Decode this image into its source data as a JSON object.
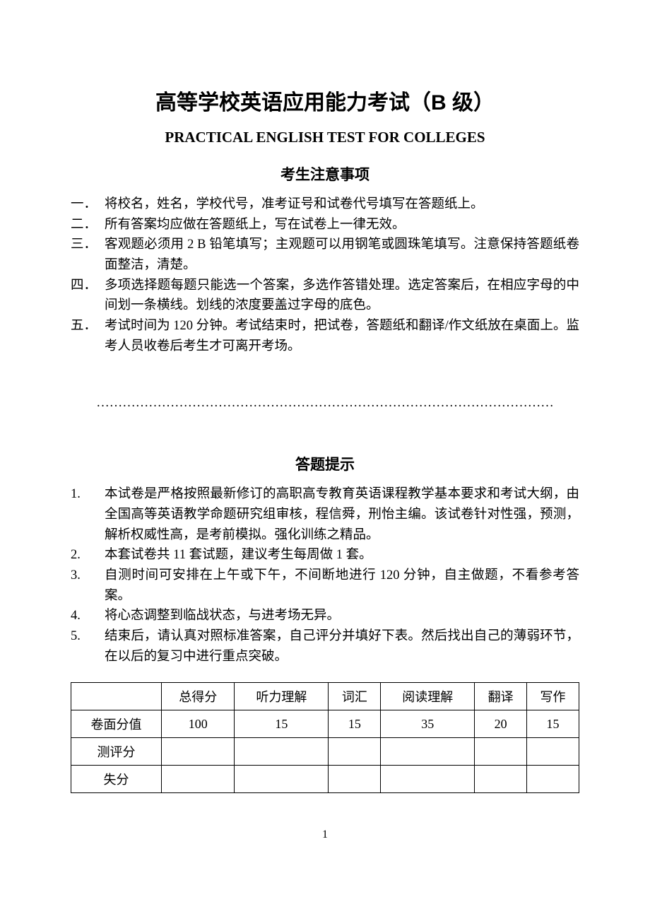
{
  "title_cn": "高等学校英语应用能力考试（B 级）",
  "title_en": "PRACTICAL ENGLISH TEST FOR COLLEGES",
  "notice_heading": "考生注意事项",
  "notice_items": [
    {
      "marker": "一．",
      "text": "将校名，姓名，学校代号，准考证号和试卷代号填写在答题纸上。"
    },
    {
      "marker": "二．",
      "text": "所有答案均应做在答题纸上，写在试卷上一律无效。"
    },
    {
      "marker": "三．",
      "text": "客观题必须用 2 B 铅笔填写；主观题可以用钢笔或圆珠笔填写。注意保持答题纸卷面整洁，清楚。"
    },
    {
      "marker": "四．",
      "text": "多项选择题每题只能选一个答案，多选作答错处理。选定答案后，在相应字母的中间划一条横线。划线的浓度要盖过字母的底色。"
    },
    {
      "marker": "五．",
      "text": "考试时间为 120 分钟。考试结束时，把试卷，答题纸和翻译/作文纸放在桌面上。监考人员收卷后考生才可离开考场。"
    }
  ],
  "divider_dots": "……………………………………………………………………………………………",
  "hints_heading": "答题提示",
  "hints_items": [
    {
      "marker": "1.",
      "text": "本试卷是严格按照最新修订的高职高专教育英语课程教学基本要求和考试大纲，由全国高等英语教学命题研究组审核，程信舜，刑怡主编。该试卷针对性强，预测，解析权威性高，是考前模拟。强化训练之精品。"
    },
    {
      "marker": "2.",
      "text": "本套试卷共 11 套试题，建议考生每周做 1 套。"
    },
    {
      "marker": "3.",
      "text": "自测时间可安排在上午或下午，不间断地进行 120 分钟，自主做题，不看参考答案。"
    },
    {
      "marker": "4.",
      "text": "将心态调整到临战状态，与进考场无异。"
    },
    {
      "marker": "5.",
      "text": "结束后，请认真对照标准答案，自己评分并填好下表。然后找出自己的薄弱环节，在以后的复习中进行重点突破。"
    }
  ],
  "score_table": {
    "columns": [
      "",
      "总得分",
      "听力理解",
      "词汇",
      "阅读理解",
      "翻译",
      "写作"
    ],
    "rows": [
      {
        "label": "卷面分值",
        "cells": [
          "100",
          "15",
          "15",
          "35",
          "20",
          "15"
        ]
      },
      {
        "label": "测评分",
        "cells": [
          "",
          "",
          "",
          "",
          "",
          ""
        ]
      },
      {
        "label": "失分",
        "cells": [
          "",
          "",
          "",
          "",
          "",
          ""
        ]
      }
    ]
  },
  "page_number": "1",
  "colors": {
    "text": "#000000",
    "background": "#ffffff",
    "border": "#000000"
  },
  "typography": {
    "base_fontsize": 18.5,
    "title_cn_fontsize": 30,
    "title_en_fontsize": 21,
    "heading_fontsize": 21,
    "line_height": 1.55
  }
}
